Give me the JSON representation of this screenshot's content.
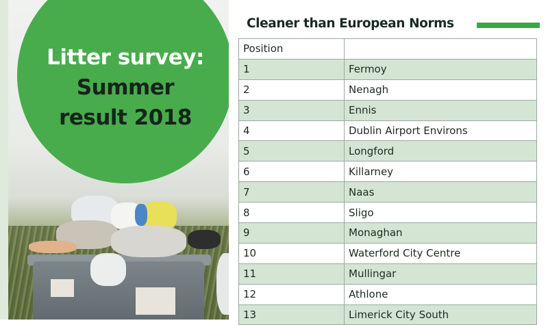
{
  "banner": {
    "line1": "Litter survey:",
    "line2": "Summer",
    "line3": "result 2018"
  },
  "heading": "Cleaner than European Norms",
  "colors": {
    "accent_green": "#48ac4c",
    "row_shade": "#d4e6d3",
    "heading_bar": "#3aa646"
  },
  "table": {
    "headers": [
      "Position",
      ""
    ],
    "rows": [
      {
        "position": "1",
        "town": "Fermoy"
      },
      {
        "position": "2",
        "town": "Nenagh"
      },
      {
        "position": "3",
        "town": "Ennis"
      },
      {
        "position": "4",
        "town": "Dublin Airport Environs"
      },
      {
        "position": "5",
        "town": "Longford"
      },
      {
        "position": "6",
        "town": "Killarney"
      },
      {
        "position": "7",
        "town": "Naas"
      },
      {
        "position": "8",
        "town": "Sligo"
      },
      {
        "position": "9",
        "town": "Monaghan"
      },
      {
        "position": "10",
        "town": "Waterford City Centre"
      },
      {
        "position": "11",
        "town": "Mullingar"
      },
      {
        "position": "12",
        "town": "Athlone"
      },
      {
        "position": "13",
        "town": "Limerick City South"
      }
    ]
  }
}
